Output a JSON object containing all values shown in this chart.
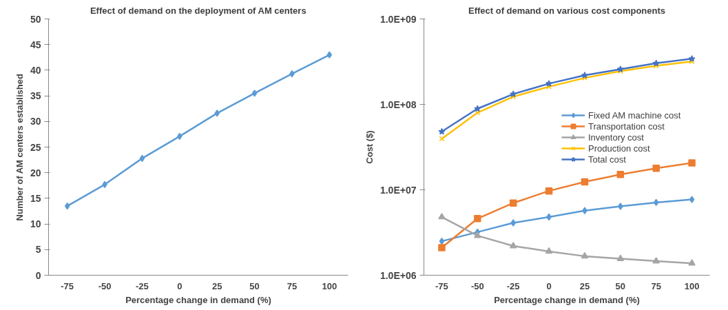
{
  "chart_data": [
    {
      "type": "line",
      "title": "Effect of demand on the deployment of AM centers",
      "xlabel": "Percentage change in demand (%)",
      "ylabel": "Number of AM centers established",
      "categories": [
        "-75",
        "-50",
        "-25",
        "0",
        "25",
        "50",
        "75",
        "100"
      ],
      "series": [
        {
          "color": "#5b9bd5",
          "marker": "diamond",
          "values": [
            13.5,
            17.7,
            22.8,
            27.1,
            31.6,
            35.5,
            39.3,
            43.0
          ]
        }
      ],
      "ylim": [
        0,
        50
      ],
      "yticks": [
        0,
        5,
        10,
        15,
        20,
        25,
        30,
        35,
        40,
        45,
        50
      ],
      "grid": false,
      "legend": false
    },
    {
      "type": "line",
      "title": "Effect of demand on various cost components",
      "xlabel": "Percentage change in demand (%)",
      "ylabel": "Cost ($)",
      "categories": [
        "-75",
        "-50",
        "-25",
        "0",
        "25",
        "50",
        "75",
        "100"
      ],
      "series": [
        {
          "name": "Fixed AM machine cost",
          "color": "#5b9bd5",
          "marker": "diamond",
          "values": [
            2500000,
            3200000,
            4100000,
            4800000,
            5700000,
            6400000,
            7100000,
            7700000
          ]
        },
        {
          "name": "Transportation cost",
          "color": "#ed7d31",
          "marker": "square",
          "values": [
            2100000,
            4600000,
            7000000,
            9700000,
            12400000,
            15100000,
            17900000,
            20600000
          ]
        },
        {
          "name": "Inventory cost",
          "color": "#a5a5a5",
          "marker": "triangle",
          "values": [
            4800000,
            2900000,
            2200000,
            1900000,
            1670000,
            1560000,
            1460000,
            1380000
          ]
        },
        {
          "name": "Production cost",
          "color": "#ffc000",
          "marker": "cross",
          "values": [
            39600000,
            80000000,
            123000000,
            161000000,
            204000000,
            245000000,
            283000000,
            318000000
          ]
        },
        {
          "name": "Total cost",
          "color": "#4472c4",
          "marker": "star",
          "values": [
            48000000,
            89000000,
            132000000,
            175000000,
            219000000,
            258000000,
            303000000,
            342000000
          ]
        }
      ],
      "log": "y",
      "ylim": [
        1000000,
        1000000000
      ],
      "yticks": [
        {
          "value": 1000000,
          "label": "1.0E+06"
        },
        {
          "value": 10000000,
          "label": "1.0E+07"
        },
        {
          "value": 100000000,
          "label": "1.0E+08"
        },
        {
          "value": 1000000000,
          "label": "1.0E+09"
        }
      ],
      "grid": false,
      "legend": "right"
    }
  ]
}
